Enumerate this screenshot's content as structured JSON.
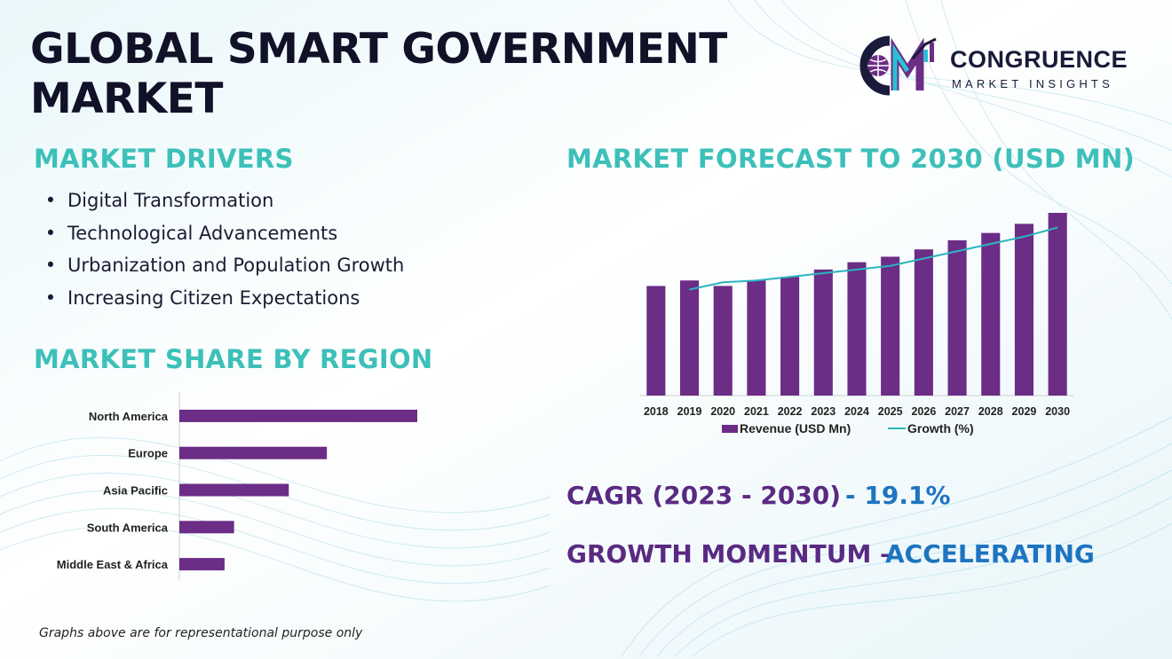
{
  "title": "GLOBAL SMART GOVERNMENT MARKET",
  "brand": {
    "name": "CONGRUENCE",
    "tagline": "MARKET INSIGHTS",
    "colors": {
      "dark": "#1a1b3a",
      "purple": "#6b2d86",
      "teal": "#2bbfd4"
    }
  },
  "drivers": {
    "heading": "MARKET DRIVERS",
    "items": [
      "Digital Transformation",
      "Technological Advancements",
      "Urbanization and Population Growth",
      "Increasing Citizen Expectations"
    ]
  },
  "share": {
    "heading": "MARKET SHARE BY REGION"
  },
  "forecast": {
    "heading": "MARKET FORECAST TO 2030 (USD MN)"
  },
  "stats": {
    "cagr_label": "CAGR (2023 - 2030)",
    "cagr_value": "- 19.1%",
    "momentum_label": "GROWTH MOMENTUM –",
    "momentum_value": "ACCELERATING"
  },
  "footnote": "Graphs above are for representational purpose only",
  "colors": {
    "heading_teal": "#3cc0b9",
    "bar_purple": "#6b2d86",
    "line_teal": "#2bb5c0",
    "stat_purple": "#5a2a82",
    "stat_blue": "#1e74c0"
  },
  "chart_data": [
    {
      "type": "bar",
      "orientation": "horizontal",
      "categories": [
        "North America",
        "Europe",
        "Asia Pacific",
        "South America",
        "Middle East & Africa"
      ],
      "values": [
        100,
        62,
        46,
        23,
        19
      ],
      "xlim": [
        0,
        100
      ],
      "grid": false
    },
    {
      "type": "bar",
      "categories": [
        "2018",
        "2019",
        "2020",
        "2021",
        "2022",
        "2023",
        "2024",
        "2025",
        "2026",
        "2027",
        "2028",
        "2029",
        "2030"
      ],
      "series": [
        {
          "name": "Revenue (USD Mn)",
          "type": "bar",
          "values": [
            60,
            63,
            60,
            63,
            65,
            69,
            73,
            76,
            80,
            85,
            89,
            94,
            100
          ]
        },
        {
          "name": "Growth (%)",
          "type": "line",
          "values": [
            null,
            58,
            62,
            63,
            65,
            67,
            69,
            71,
            75,
            79,
            83,
            87,
            92
          ]
        }
      ],
      "ylim": [
        0,
        100
      ],
      "legend": "bottom",
      "grid": false
    }
  ]
}
